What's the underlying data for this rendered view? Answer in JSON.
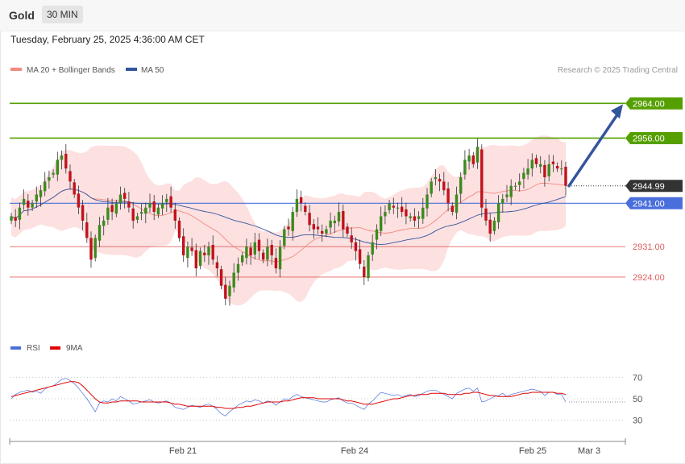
{
  "header": {
    "symbol": "Gold",
    "timeframe": "30 MIN"
  },
  "datetime": "Tuesday, February 25, 2025 4:36:00 AM CET",
  "legend": {
    "items": [
      {
        "label": "MA 20 + Bollinger Bands",
        "color": "#f28b82"
      },
      {
        "label": "MA 50",
        "color": "#33559c"
      }
    ],
    "credit": "Research © 2025 Trading Central"
  },
  "rsi_legend": {
    "items": [
      {
        "label": "RSI",
        "color": "#4a6fdc"
      },
      {
        "label": "9MA",
        "color": "#e00000"
      }
    ]
  },
  "colors": {
    "up": "#3c8a1e",
    "down": "#c0121c",
    "resistance": "#55a000",
    "pivot": "#4a6fdc",
    "support": "#e06060",
    "last": "#333333",
    "arrow": "#33559c",
    "band_fill": "#fde0e0"
  },
  "chart_data": [
    {
      "type": "candlestick",
      "title": "Gold",
      "timeframe": "30 MIN",
      "ylim": [
        2911,
        2970
      ],
      "x_ticks": [
        "Feb 21",
        "Feb 24",
        "Feb 25",
        "Mar 3"
      ],
      "levels": [
        {
          "value": 2964.0,
          "label": "2964.00",
          "kind": "resistance"
        },
        {
          "value": 2956.0,
          "label": "2956.00",
          "kind": "resistance"
        },
        {
          "value": 2944.99,
          "label": "2944.99",
          "kind": "last"
        },
        {
          "value": 2941.0,
          "label": "2941.00",
          "kind": "pivot"
        },
        {
          "value": 2931.0,
          "label": "2931.00",
          "kind": "support"
        },
        {
          "value": 2924.0,
          "label": "2924.00",
          "kind": "support"
        }
      ],
      "forecast_target": 2964.0,
      "series": [
        {
          "name": "MA 20 + Bollinger Bands",
          "kind": "line_with_bands"
        },
        {
          "name": "MA 50",
          "kind": "line"
        }
      ],
      "close_path": [
        2938,
        2937,
        2940,
        2942,
        2940,
        2941,
        2943,
        2944,
        2946,
        2947,
        2948,
        2951,
        2952,
        2949,
        2946,
        2943,
        2940,
        2937,
        2933,
        2928,
        2933,
        2936,
        2937,
        2940,
        2939,
        2941,
        2943,
        2942,
        2940,
        2937,
        2938,
        2939,
        2940,
        2941,
        2939,
        2940,
        2941,
        2942,
        2940,
        2937,
        2933,
        2929,
        2931,
        2930,
        2926,
        2930,
        2929,
        2931,
        2928,
        2926,
        2922,
        2919,
        2922,
        2925,
        2927,
        2929,
        2931,
        2929,
        2932,
        2930,
        2928,
        2931,
        2929,
        2926,
        2931,
        2935,
        2935,
        2939,
        2942,
        2941,
        2939,
        2936,
        2935,
        2935,
        2934,
        2935,
        2937,
        2937,
        2939,
        2935,
        2934,
        2932,
        2930,
        2927,
        2924,
        2929,
        2932,
        2935,
        2938,
        2939,
        2941,
        2940,
        2940,
        2939,
        2938,
        2938,
        2937,
        2938,
        2940,
        2943,
        2946,
        2947,
        2946,
        2944,
        2941,
        2939,
        2943,
        2947,
        2951,
        2952,
        2950,
        2954,
        2940,
        2937,
        2934,
        2937,
        2941,
        2942,
        2943,
        2945,
        2945,
        2946,
        2948,
        2949,
        2951,
        2950,
        2950,
        2947,
        2950,
        2950,
        2949,
        2949,
        2944.99
      ]
    },
    {
      "type": "line",
      "title": "RSI",
      "ylim": [
        20,
        80
      ],
      "y_ticks": [
        70,
        50,
        30
      ],
      "series": [
        {
          "name": "RSI",
          "values": [
            50,
            54,
            56,
            57,
            58,
            56,
            57,
            55,
            59,
            61,
            62,
            65,
            68,
            69,
            67,
            64,
            60,
            55,
            50,
            44,
            38,
            46,
            48,
            47,
            50,
            48,
            52,
            50,
            48,
            45,
            46,
            47,
            48,
            49,
            47,
            46,
            47,
            48,
            46,
            42,
            41,
            40,
            42,
            44,
            43,
            42,
            44,
            45,
            43,
            40,
            36,
            34,
            38,
            41,
            44,
            46,
            48,
            47,
            49,
            48,
            46,
            48,
            47,
            44,
            47,
            50,
            49,
            52,
            54,
            52,
            51,
            50,
            49,
            48,
            47,
            47,
            49,
            50,
            51,
            48,
            46,
            46,
            44,
            42,
            40,
            45,
            48,
            52,
            56,
            55,
            54,
            53,
            54,
            52,
            53,
            54,
            52,
            53,
            55,
            57,
            58,
            58,
            56,
            54,
            52,
            50,
            55,
            57,
            59,
            60,
            57,
            60,
            47,
            48,
            50,
            52,
            53,
            55,
            52,
            54,
            55,
            56,
            57,
            58,
            59,
            58,
            57,
            53,
            56,
            56,
            54,
            54,
            47
          ]
        },
        {
          "name": "9MA",
          "values": [
            52,
            53,
            54,
            55,
            56,
            57,
            58,
            59,
            60,
            61,
            62,
            63,
            64,
            65,
            66,
            66,
            65,
            62,
            58,
            54,
            50,
            47,
            46,
            46,
            47,
            47,
            48,
            48,
            48,
            48,
            48,
            47,
            47,
            47,
            47,
            47,
            47,
            47,
            46,
            45,
            45,
            44,
            43,
            43,
            43,
            43,
            43,
            43,
            43,
            42,
            42,
            41,
            41,
            41,
            42,
            42,
            43,
            43,
            44,
            45,
            46,
            47,
            47,
            47,
            47,
            48,
            48,
            49,
            50,
            51,
            51,
            51,
            51,
            50,
            50,
            50,
            50,
            50,
            50,
            49,
            48,
            48,
            47,
            46,
            45,
            45,
            45,
            46,
            47,
            48,
            49,
            50,
            50,
            51,
            52,
            53,
            53,
            54,
            54,
            54,
            55,
            55,
            55,
            55,
            54,
            54,
            54,
            54,
            55,
            55,
            56,
            56,
            55,
            54,
            53,
            53,
            52,
            52,
            52,
            52,
            53,
            54,
            55,
            55,
            56,
            56,
            56,
            56,
            56,
            56,
            55,
            55,
            54
          ]
        }
      ]
    }
  ]
}
